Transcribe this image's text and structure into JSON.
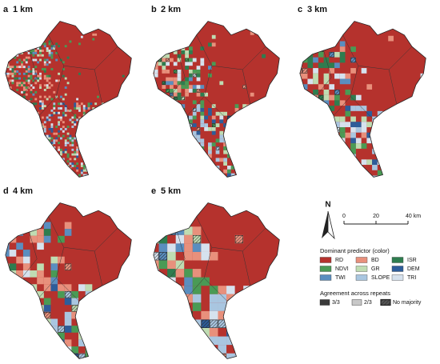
{
  "panels": [
    {
      "letter": "a",
      "label": "1 km"
    },
    {
      "letter": "b",
      "label": "2 km"
    },
    {
      "letter": "c",
      "label": "3 km"
    },
    {
      "letter": "d",
      "label": "4 km"
    },
    {
      "letter": "e",
      "label": "5 km"
    }
  ],
  "north": "N",
  "scale": {
    "xlim": [
      0,
      40
    ],
    "xticks": [
      0,
      20,
      {
        "value": 40,
        "label": "40 km"
      }
    ]
  },
  "legend": {
    "title": "Dominant predictor (color)",
    "items": [
      {
        "name": "RD",
        "color": "#b5322d"
      },
      {
        "name": "BD",
        "color": "#e8907c"
      },
      {
        "name": "ISR",
        "color": "#2e7d4f"
      },
      {
        "name": "NDVI",
        "color": "#4a9a55"
      },
      {
        "name": "GR",
        "color": "#bfdcb2"
      },
      {
        "name": "DEM",
        "color": "#2d5d9a"
      },
      {
        "name": "TWI",
        "color": "#5a8ebf"
      },
      {
        "name": "SLOPE",
        "color": "#a9c6e0"
      },
      {
        "name": "TRI",
        "color": "#d6e2ee"
      }
    ]
  },
  "agreement": {
    "title": "Agreement across repeats",
    "items": [
      {
        "name": "3/3",
        "color": "#3a3a3a"
      },
      {
        "name": "2/3",
        "color": "#c8c8c8"
      },
      {
        "name": "No majority",
        "color": "#555555"
      }
    ]
  }
}
